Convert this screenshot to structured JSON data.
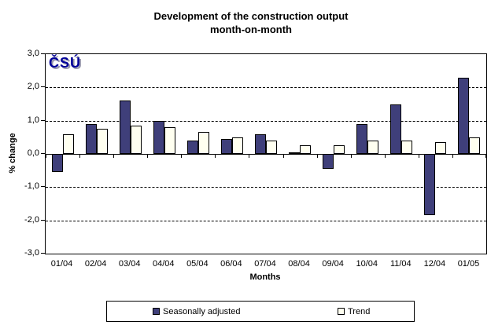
{
  "title": {
    "line1": "Development of the construction output",
    "line2": "month-on-month"
  },
  "logo": {
    "text": "ČSÚ"
  },
  "chart_data": {
    "type": "bar",
    "title": "Development of the construction output month-on-month",
    "xlabel": "Months",
    "ylabel": "% change",
    "categories": [
      "01/04",
      "02/04",
      "03/04",
      "04/04",
      "05/04",
      "06/04",
      "07/04",
      "08/04",
      "09/04",
      "10/04",
      "11/04",
      "12/04",
      "01/05"
    ],
    "series": [
      {
        "name": "Seasonally adjusted",
        "color": "#3F3F7A",
        "values": [
          -0.55,
          0.9,
          1.6,
          1.0,
          0.4,
          0.45,
          0.6,
          0.05,
          -0.45,
          0.9,
          1.5,
          -1.85,
          2.3
        ]
      },
      {
        "name": "Trend",
        "color": "#FFFFF0",
        "values": [
          0.6,
          0.75,
          0.85,
          0.8,
          0.65,
          0.5,
          0.4,
          0.25,
          0.25,
          0.4,
          0.4,
          0.35,
          0.5
        ]
      }
    ],
    "ylim": [
      -3,
      3
    ],
    "yticks": [
      3,
      2,
      1,
      0,
      -1,
      -2,
      -3
    ],
    "ytick_labels": [
      "3,0",
      "2,0",
      "1,0",
      "0,0",
      "-1,0",
      "-2,0",
      "-3,0"
    ],
    "gridline_values": [
      2,
      1,
      -1,
      -2
    ],
    "grid": "horizontal-dashed",
    "legend_position": "bottom"
  },
  "legend": {
    "items": [
      {
        "label": "Seasonally adjusted",
        "color": "#3F3F7A"
      },
      {
        "label": "Trend",
        "color": "#FFFFF0"
      }
    ]
  }
}
